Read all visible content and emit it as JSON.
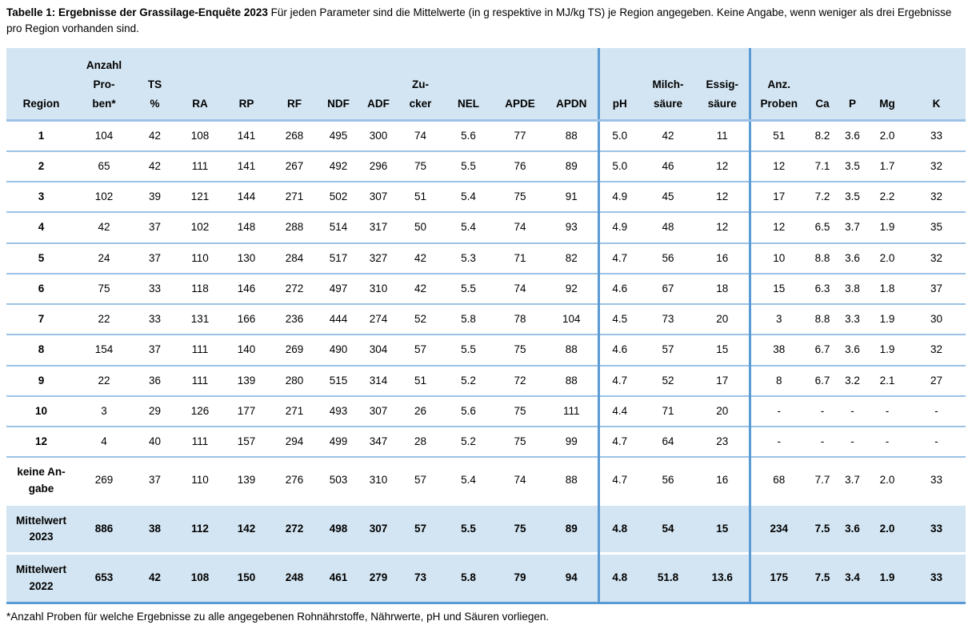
{
  "title": {
    "bold": "Tabelle 1: Ergebnisse der Grassilage-Enquête 2023",
    "rest": " Für jeden Parameter sind die Mittelwerte (in g respektive in MJ/kg TS) je Region angegeben. Keine Angabe, wenn weniger als drei Ergebnisse pro Region vorhanden sind."
  },
  "footnote": "*Anzahl Proben für welche Ergebnisse zu alle angegebenen Rohnährstoffe, Nährwerte, pH und Säuren vorliegen.",
  "colors": {
    "header_background": "#d3e5f2",
    "summary_background": "#d3e5f2",
    "row_separator": "#9cc2e5",
    "section_divider": "#5b9bd5",
    "text": "#000000"
  },
  "table": {
    "columns": [
      {
        "id": "region",
        "label": "Region"
      },
      {
        "id": "anzahl-proben",
        "label": "Anzahl\nPro-\nben*"
      },
      {
        "id": "ts",
        "label": "TS\n%"
      },
      {
        "id": "ra",
        "label": "RA"
      },
      {
        "id": "rp",
        "label": "RP"
      },
      {
        "id": "rf",
        "label": "RF"
      },
      {
        "id": "ndf",
        "label": "NDF"
      },
      {
        "id": "adf",
        "label": "ADF"
      },
      {
        "id": "zucker",
        "label": "Zu-\ncker"
      },
      {
        "id": "nel",
        "label": "NEL"
      },
      {
        "id": "apde",
        "label": "APDE"
      },
      {
        "id": "apdn",
        "label": "APDN"
      },
      {
        "id": "ph",
        "label": "pH"
      },
      {
        "id": "milchsaeure",
        "label": "Milch-\nsäure"
      },
      {
        "id": "essigsaeure",
        "label": "Essig-\nsäure"
      },
      {
        "id": "anz-proben",
        "label": "Anz.\nProben"
      },
      {
        "id": "ca",
        "label": "Ca"
      },
      {
        "id": "p",
        "label": "P"
      },
      {
        "id": "mg",
        "label": "Mg"
      },
      {
        "id": "k",
        "label": "K"
      }
    ],
    "rows": [
      {
        "label": "1",
        "values": [
          "104",
          "42",
          "108",
          "141",
          "268",
          "495",
          "300",
          "74",
          "5.6",
          "77",
          "88",
          "5.0",
          "42",
          "11",
          "51",
          "8.2",
          "3.6",
          "2.0",
          "33"
        ]
      },
      {
        "label": "2",
        "values": [
          "65",
          "42",
          "111",
          "141",
          "267",
          "492",
          "296",
          "75",
          "5.5",
          "76",
          "89",
          "5.0",
          "46",
          "12",
          "12",
          "7.1",
          "3.5",
          "1.7",
          "32"
        ]
      },
      {
        "label": "3",
        "values": [
          "102",
          "39",
          "121",
          "144",
          "271",
          "502",
          "307",
          "51",
          "5.4",
          "75",
          "91",
          "4.9",
          "45",
          "12",
          "17",
          "7.2",
          "3.5",
          "2.2",
          "32"
        ]
      },
      {
        "label": "4",
        "values": [
          "42",
          "37",
          "102",
          "148",
          "288",
          "514",
          "317",
          "50",
          "5.4",
          "74",
          "93",
          "4.9",
          "48",
          "12",
          "12",
          "6.5",
          "3.7",
          "1.9",
          "35"
        ]
      },
      {
        "label": "5",
        "values": [
          "24",
          "37",
          "110",
          "130",
          "284",
          "517",
          "327",
          "42",
          "5.3",
          "71",
          "82",
          "4.7",
          "56",
          "16",
          "10",
          "8.8",
          "3.6",
          "2.0",
          "32"
        ]
      },
      {
        "label": "6",
        "values": [
          "75",
          "33",
          "118",
          "146",
          "272",
          "497",
          "310",
          "42",
          "5.5",
          "74",
          "92",
          "4.6",
          "67",
          "18",
          "15",
          "6.3",
          "3.8",
          "1.8",
          "37"
        ]
      },
      {
        "label": "7",
        "values": [
          "22",
          "33",
          "131",
          "166",
          "236",
          "444",
          "274",
          "52",
          "5.8",
          "78",
          "104",
          "4.5",
          "73",
          "20",
          "3",
          "8.8",
          "3.3",
          "1.9",
          "30"
        ]
      },
      {
        "label": "8",
        "values": [
          "154",
          "37",
          "111",
          "140",
          "269",
          "490",
          "304",
          "57",
          "5.5",
          "75",
          "88",
          "4.6",
          "57",
          "15",
          "38",
          "6.7",
          "3.6",
          "1.9",
          "32"
        ]
      },
      {
        "label": "9",
        "values": [
          "22",
          "36",
          "111",
          "139",
          "280",
          "515",
          "314",
          "51",
          "5.2",
          "72",
          "88",
          "4.7",
          "52",
          "17",
          "8",
          "6.7",
          "3.2",
          "2.1",
          "27"
        ]
      },
      {
        "label": "10",
        "values": [
          "3",
          "29",
          "126",
          "177",
          "271",
          "493",
          "307",
          "26",
          "5.6",
          "75",
          "111",
          "4.4",
          "71",
          "20",
          "-",
          "-",
          "-",
          "-",
          "-"
        ]
      },
      {
        "label": "12",
        "values": [
          "4",
          "40",
          "111",
          "157",
          "294",
          "499",
          "347",
          "28",
          "5.2",
          "75",
          "99",
          "4.7",
          "64",
          "23",
          "-",
          "-",
          "-",
          "-",
          "-"
        ]
      },
      {
        "label": "keine An-\ngabe",
        "values": [
          "269",
          "37",
          "110",
          "139",
          "276",
          "503",
          "310",
          "57",
          "5.4",
          "74",
          "88",
          "4.7",
          "56",
          "16",
          "68",
          "7.7",
          "3.7",
          "2.0",
          "33"
        ]
      }
    ],
    "summary_rows": [
      {
        "label": "Mittelwert\n2023",
        "values": [
          "886",
          "38",
          "112",
          "142",
          "272",
          "498",
          "307",
          "57",
          "5.5",
          "75",
          "89",
          "4.8",
          "54",
          "15",
          "234",
          "7.5",
          "3.6",
          "2.0",
          "33"
        ]
      },
      {
        "label": "Mittelwert\n2022",
        "values": [
          "653",
          "42",
          "108",
          "150",
          "248",
          "461",
          "279",
          "73",
          "5.8",
          "79",
          "94",
          "4.8",
          "51.8",
          "13.6",
          "175",
          "7.5",
          "3.4",
          "1.9",
          "33"
        ]
      }
    ]
  }
}
